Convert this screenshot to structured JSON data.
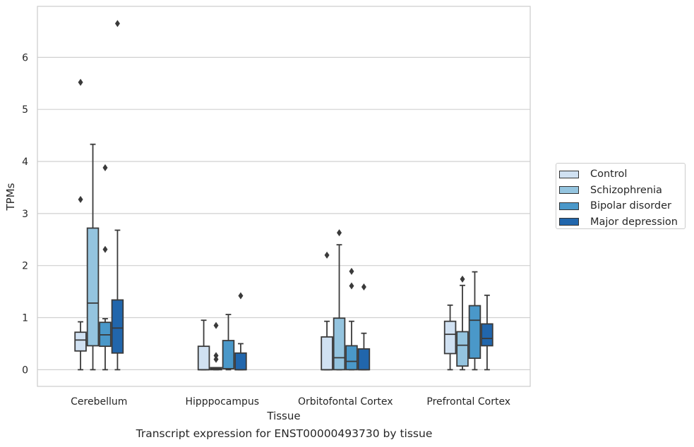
{
  "caption": "Transcript expression for ENST00000493730 by tissue",
  "chart_data": {
    "type": "box",
    "title": "",
    "xlabel": "Tissue",
    "ylabel": "TPMs",
    "ylim": [
      -0.32,
      6.98
    ],
    "yticks": [
      0,
      1,
      2,
      3,
      4,
      5,
      6
    ],
    "grid": true,
    "legend_position": "right",
    "categories": [
      "Cerebellum",
      "Hipppocampus",
      "Orbitofontal Cortex",
      "Prefrontal Cortex"
    ],
    "series": [
      {
        "name": "Control",
        "color": "#d0e1f2",
        "boxes": [
          {
            "q1": 0.36,
            "median": 0.57,
            "q3": 0.72,
            "whisker_low": 0.0,
            "whisker_high": 0.92,
            "outliers": [
              3.27,
              5.52
            ]
          },
          {
            "q1": 0.0,
            "median": 0.0,
            "q3": 0.45,
            "whisker_low": 0.0,
            "whisker_high": 0.95,
            "outliers": []
          },
          {
            "q1": 0.0,
            "median": 0.0,
            "q3": 0.63,
            "whisker_low": 0.0,
            "whisker_high": 0.93,
            "outliers": [
              2.2
            ]
          },
          {
            "q1": 0.31,
            "median": 0.68,
            "q3": 0.93,
            "whisker_low": 0.0,
            "whisker_high": 1.24,
            "outliers": []
          }
        ]
      },
      {
        "name": "Schizophrenia",
        "color": "#94c4df",
        "boxes": [
          {
            "q1": 0.46,
            "median": 1.28,
            "q3": 2.72,
            "whisker_low": 0.0,
            "whisker_high": 4.33,
            "outliers": []
          },
          {
            "q1": 0.0,
            "median": 0.02,
            "q3": 0.04,
            "whisker_low": 0.0,
            "whisker_high": 0.04,
            "outliers": [
              0.2,
              0.27,
              0.85
            ]
          },
          {
            "q1": 0.0,
            "median": 0.23,
            "q3": 0.99,
            "whisker_low": 0.0,
            "whisker_high": 2.4,
            "outliers": [
              2.63
            ]
          },
          {
            "q1": 0.07,
            "median": 0.47,
            "q3": 0.73,
            "whisker_low": 0.0,
            "whisker_high": 1.62,
            "outliers": [
              1.74
            ]
          }
        ]
      },
      {
        "name": "Bipolar disorder",
        "color": "#4a98c9",
        "boxes": [
          {
            "q1": 0.45,
            "median": 0.67,
            "q3": 0.91,
            "whisker_low": 0.0,
            "whisker_high": 0.98,
            "outliers": [
              2.31,
              3.88
            ]
          },
          {
            "q1": 0.02,
            "median": 0.02,
            "q3": 0.56,
            "whisker_low": 0.0,
            "whisker_high": 1.06,
            "outliers": []
          },
          {
            "q1": 0.0,
            "median": 0.16,
            "q3": 0.46,
            "whisker_low": 0.0,
            "whisker_high": 0.93,
            "outliers": [
              1.61,
              1.89
            ]
          },
          {
            "q1": 0.22,
            "median": 0.95,
            "q3": 1.23,
            "whisker_low": 0.0,
            "whisker_high": 1.88,
            "outliers": []
          }
        ]
      },
      {
        "name": "Major depression",
        "color": "#2166ac",
        "boxes": [
          {
            "q1": 0.32,
            "median": 0.8,
            "q3": 1.34,
            "whisker_low": 0.0,
            "whisker_high": 2.68,
            "outliers": [
              6.65
            ]
          },
          {
            "q1": 0.0,
            "median": 0.0,
            "q3": 0.32,
            "whisker_low": 0.0,
            "whisker_high": 0.5,
            "outliers": [
              1.42
            ]
          },
          {
            "q1": 0.0,
            "median": 0.0,
            "q3": 0.4,
            "whisker_low": 0.0,
            "whisker_high": 0.7,
            "outliers": [
              1.59
            ]
          },
          {
            "q1": 0.46,
            "median": 0.6,
            "q3": 0.88,
            "whisker_low": 0.0,
            "whisker_high": 1.43,
            "outliers": []
          }
        ]
      }
    ]
  }
}
